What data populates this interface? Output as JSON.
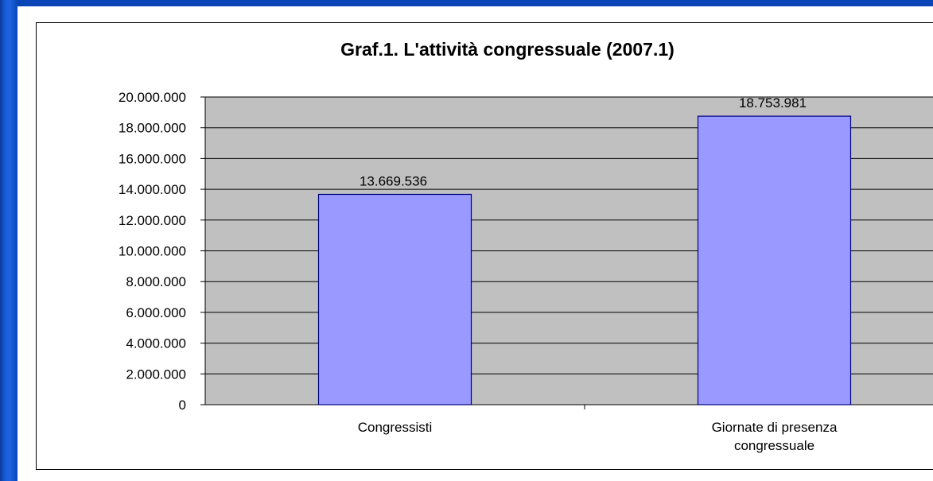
{
  "chart_data": {
    "type": "bar",
    "title": "Graf.1. L'attività congressuale (2007.1)",
    "categories": [
      [
        "Congressisti"
      ],
      [
        "Giornate di presenza",
        "congressuale"
      ]
    ],
    "values": [
      13669536,
      18753981
    ],
    "value_labels": [
      "13.669.536",
      "18.753.981"
    ],
    "ylim": [
      0,
      20000000
    ],
    "yticks": [
      0,
      2000000,
      4000000,
      6000000,
      8000000,
      10000000,
      12000000,
      14000000,
      16000000,
      18000000,
      20000000
    ],
    "ytick_labels": [
      "0",
      "2.000.000",
      "4.000.000",
      "6.000.000",
      "8.000.000",
      "10.000.000",
      "12.000.000",
      "14.000.000",
      "16.000.000",
      "18.000.000",
      "20.000.000"
    ],
    "grid": true,
    "xlabel": "",
    "ylabel": "",
    "colors": {
      "bar_fill": "#9999ff",
      "bar_stroke": "#000080",
      "plot_bg": "#c0c0c0",
      "grid": "#000000",
      "slide_bg": "#0a45b8"
    }
  }
}
